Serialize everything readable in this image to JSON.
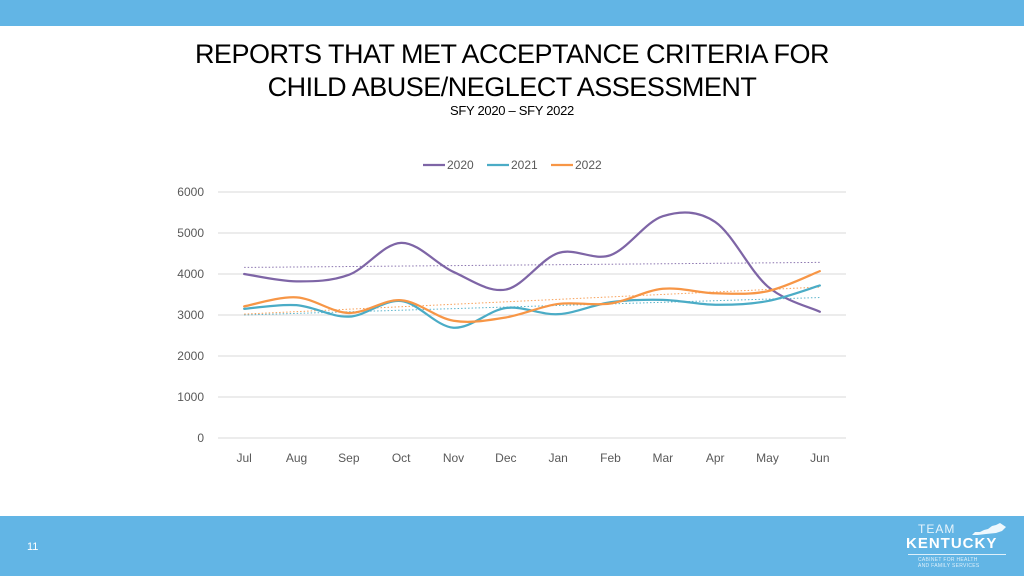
{
  "slide": {
    "title_line1": "REPORTS THAT MET ACCEPTANCE CRITERIA FOR",
    "title_line2": "CHILD ABUSE/NEGLECT ASSESSMENT",
    "subtitle": "SFY 2020 – SFY 2022",
    "page_number": "11"
  },
  "logo": {
    "line1": "TEAM",
    "line2": "KENTUCKY",
    "line3": "CABINET FOR HEALTH",
    "line4": "AND FAMILY SERVICES"
  },
  "colors": {
    "band": "#62b5e5",
    "s2020": "#7e65a6",
    "s2021": "#4bacc6",
    "s2022": "#f79646",
    "grid": "#d9d9d9",
    "text": "#595959"
  },
  "chart_data": {
    "type": "line",
    "title": "",
    "categories": [
      "Jul",
      "Aug",
      "Sep",
      "Oct",
      "Nov",
      "Dec",
      "Jan",
      "Feb",
      "Mar",
      "Apr",
      "May",
      "Jun"
    ],
    "ylim": [
      0,
      6000
    ],
    "yticks": [
      0,
      1000,
      2000,
      3000,
      4000,
      5000,
      6000
    ],
    "grid": true,
    "legend": "top-center",
    "smooth": true,
    "trendlines": true,
    "series": [
      {
        "name": "2020",
        "color": "#7e65a6",
        "values": [
          4000,
          3820,
          3980,
          4760,
          4050,
          3620,
          4510,
          4460,
          5410,
          5270,
          3700,
          3080
        ]
      },
      {
        "name": "2021",
        "color": "#4bacc6",
        "values": [
          3150,
          3240,
          2960,
          3340,
          2690,
          3170,
          3020,
          3310,
          3370,
          3250,
          3340,
          3720
        ]
      },
      {
        "name": "2022",
        "color": "#f79646",
        "values": [
          3210,
          3430,
          3050,
          3360,
          2860,
          2940,
          3270,
          3280,
          3640,
          3530,
          3580,
          4070
        ]
      }
    ]
  }
}
